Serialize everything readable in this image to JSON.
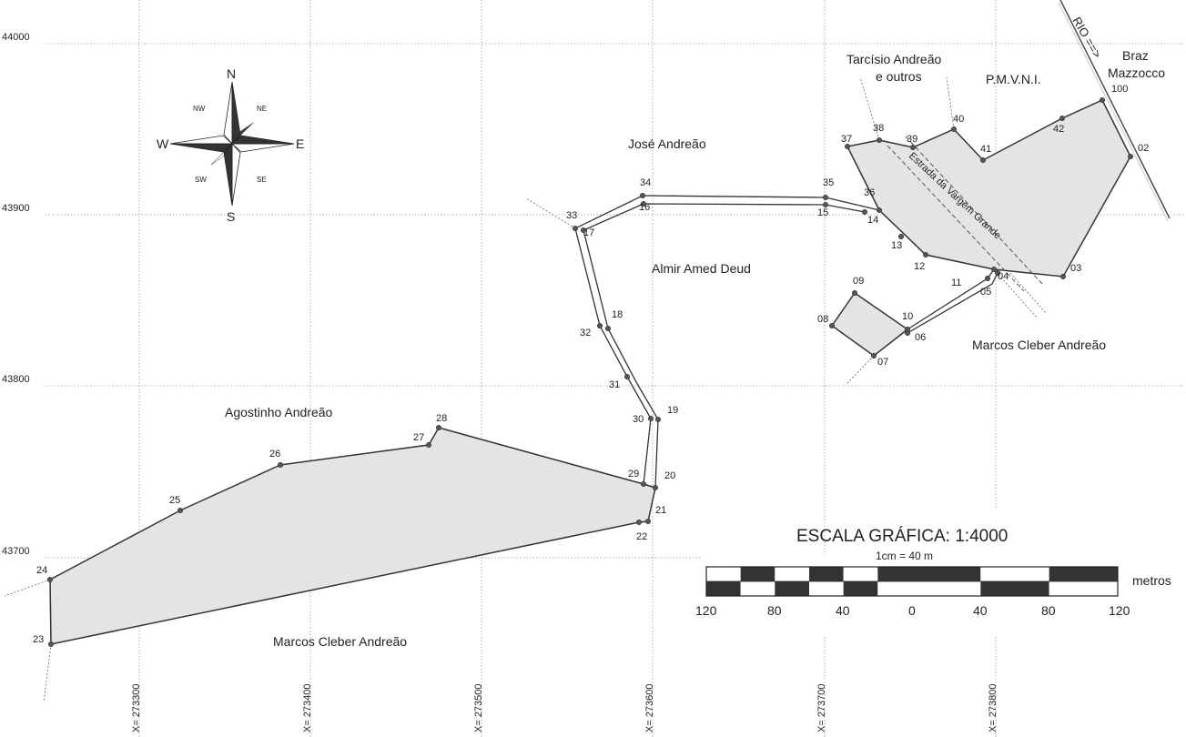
{
  "grid": {
    "y_labels": [
      "44000",
      "43900",
      "43800",
      "43700"
    ],
    "x_labels": [
      "X= 273300",
      "X= 273400",
      "X= 273500",
      "X= 273600",
      "X= 273700",
      "X= 273800"
    ]
  },
  "compass": {
    "main": [
      "N",
      "E",
      "S",
      "W"
    ],
    "inter": [
      "NE",
      "SE",
      "SW",
      "NW"
    ]
  },
  "owners": {
    "tarcisio_l1": "Tarcísio Andreão",
    "tarcisio_l2": "e outros",
    "pmvni": "P.M.V.N.I.",
    "braz_l1": "Braz",
    "braz_l2": "Mazzocco",
    "jose": "José Andreão",
    "almir": "Almir Amed Deud",
    "marcos_east": "Marcos Cleber Andreão",
    "agostinho": "Agostinho Andreão",
    "marcos_south": "Marcos Cleber Andreão"
  },
  "road_label": "Estrada da Vargem Grande",
  "river_label": "RIO ==>",
  "points": [
    {
      "id": "23",
      "label": "23"
    },
    {
      "id": "24",
      "label": "24"
    },
    {
      "id": "25",
      "label": "25"
    },
    {
      "id": "26",
      "label": "26"
    },
    {
      "id": "27",
      "label": "27"
    },
    {
      "id": "28",
      "label": "28"
    },
    {
      "id": "29",
      "label": "29"
    },
    {
      "id": "20",
      "label": "20"
    },
    {
      "id": "21",
      "label": "21"
    },
    {
      "id": "22",
      "label": "22"
    },
    {
      "id": "19",
      "label": "19"
    },
    {
      "id": "30",
      "label": "30"
    },
    {
      "id": "31",
      "label": "31"
    },
    {
      "id": "18",
      "label": "18"
    },
    {
      "id": "32",
      "label": "32"
    },
    {
      "id": "17",
      "label": "17"
    },
    {
      "id": "33",
      "label": "33"
    },
    {
      "id": "16",
      "label": "16"
    },
    {
      "id": "34",
      "label": "34"
    },
    {
      "id": "35",
      "label": "35"
    },
    {
      "id": "15",
      "label": "15"
    },
    {
      "id": "36",
      "label": "36"
    },
    {
      "id": "14",
      "label": "14"
    },
    {
      "id": "37",
      "label": "37"
    },
    {
      "id": "38",
      "label": "38"
    },
    {
      "id": "39",
      "label": "39"
    },
    {
      "id": "40",
      "label": "40"
    },
    {
      "id": "41",
      "label": "41"
    },
    {
      "id": "42",
      "label": "42"
    },
    {
      "id": "100",
      "label": "100"
    },
    {
      "id": "02",
      "label": "02"
    },
    {
      "id": "03",
      "label": "03"
    },
    {
      "id": "04",
      "label": "04"
    },
    {
      "id": "05",
      "label": "05"
    },
    {
      "id": "11",
      "label": "11"
    },
    {
      "id": "12",
      "label": "12"
    },
    {
      "id": "13",
      "label": "13"
    },
    {
      "id": "10",
      "label": "10"
    },
    {
      "id": "06",
      "label": "06"
    },
    {
      "id": "07",
      "label": "07"
    },
    {
      "id": "08",
      "label": "08"
    },
    {
      "id": "09",
      "label": "09"
    }
  ],
  "scale": {
    "title": "ESCALA GRÁFICA: 1:4000",
    "sub": "1cm = 40 m",
    "unit": "metros",
    "ticks": [
      "120",
      "80",
      "40",
      "0",
      "40",
      "80",
      "120"
    ]
  },
  "colors": {
    "parcel_fill": "#e4e4e4",
    "line": "#333333",
    "grid": "#888888"
  }
}
